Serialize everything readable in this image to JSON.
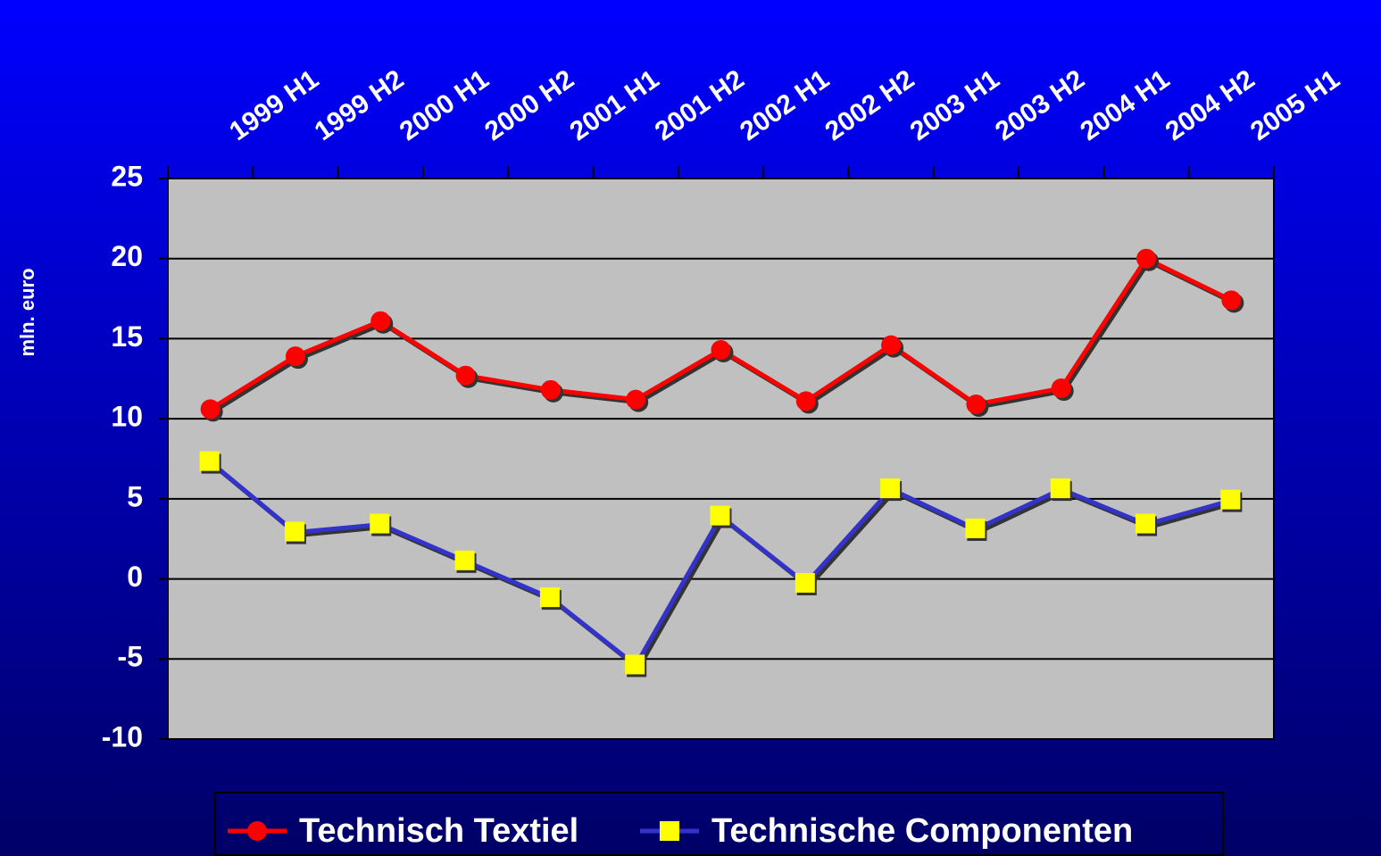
{
  "chart_data": {
    "type": "line",
    "y_axis_label": "mln. euro",
    "categories": [
      "1999 H1",
      "1999 H2",
      "2000 H1",
      "2000 H2",
      "2001 H1",
      "2001 H2",
      "2002 H1",
      "2002 H2",
      "2003 H1",
      "2003 H2",
      "2004 H1",
      "2004 H2",
      "2005 H1"
    ],
    "series": [
      {
        "name": "Technisch Textiel",
        "color": "#ff0000",
        "marker": "circle",
        "values": [
          10.6,
          13.9,
          16.1,
          12.7,
          11.8,
          11.2,
          14.3,
          11.1,
          14.6,
          10.9,
          11.9,
          20,
          17.4
        ]
      },
      {
        "name": "Technische Componenten",
        "color": "#3333cc",
        "marker": "square",
        "marker_color": "#ffff00",
        "values": [
          7.3,
          2.9,
          3.4,
          1.1,
          -1.2,
          -5.4,
          3.9,
          -0.3,
          5.6,
          3.1,
          5.6,
          3.4,
          4.9
        ]
      }
    ],
    "ylim": [
      -10,
      25
    ],
    "yticks": [
      -10,
      -5,
      0,
      5,
      10,
      15,
      20,
      25
    ],
    "grid": true,
    "legend": "bottom"
  }
}
